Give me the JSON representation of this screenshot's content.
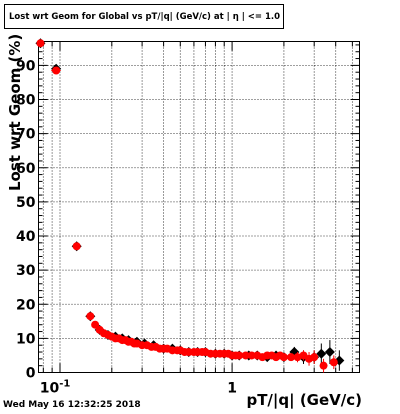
{
  "title": "Lost wrt Geom for Global vs pT/|q| (GeV/c) at |  η | <= 1.0",
  "footer": {
    "timestamp": "Wed May 16 12:32:25 2018"
  },
  "chart_data": {
    "type": "scatter",
    "title": "Lost wrt Geom for Global vs pT/|q| (GeV/c) at |  η | <= 1.0",
    "xlabel": "pT/|q| (GeV/c)",
    "ylabel": "Lost wrt Geom (%)",
    "xscale": "log",
    "xlim": [
      0.075,
      5.5
    ],
    "ylim": [
      0,
      97
    ],
    "grid": true,
    "x_ticks": [
      {
        "value": 0.1,
        "label": "10^-1"
      },
      {
        "value": 1,
        "label": "1"
      }
    ],
    "y_ticks": [
      0,
      10,
      20,
      30,
      40,
      50,
      60,
      70,
      80,
      90
    ],
    "colors": {
      "series_black": "#000000",
      "series_red": "#ff0000"
    },
    "series": [
      {
        "marker": "diamond",
        "color": "#000000",
        "x": [
          0.077,
          0.095,
          0.125,
          0.15,
          0.17,
          0.19,
          0.21,
          0.23,
          0.25,
          0.28,
          0.31,
          0.35,
          0.4,
          0.45,
          0.5,
          0.56,
          0.63,
          0.7,
          0.8,
          0.9,
          1.0,
          1.1,
          1.25,
          1.4,
          1.6,
          1.8,
          2.0,
          2.3,
          2.6,
          3.0,
          3.3,
          3.7,
          4.2
        ],
        "y": [
          96.5,
          89,
          37,
          16.5,
          12.5,
          11,
          10.5,
          10,
          9.5,
          9,
          8.5,
          8,
          7,
          7,
          6.5,
          6,
          6,
          6,
          5.5,
          5.5,
          5,
          5,
          5,
          5,
          4.5,
          5,
          4.5,
          6,
          4.5,
          4.5,
          5.5,
          6,
          3.5
        ],
        "xerr": [
          0,
          0.006,
          0.005,
          0,
          0,
          0,
          0,
          0,
          0,
          0,
          0,
          0,
          0,
          0,
          0,
          0,
          0,
          0,
          0,
          0,
          0,
          0,
          0,
          0,
          0,
          0,
          0,
          0,
          0,
          0,
          0,
          0,
          0
        ],
        "yerr": [
          0,
          0,
          0,
          0,
          0,
          0,
          0,
          0,
          0,
          0,
          0,
          0,
          0,
          0,
          0,
          0,
          0,
          0,
          0,
          0,
          0,
          0,
          0,
          0,
          0,
          0,
          0,
          1.5,
          2,
          2,
          3,
          3.5,
          3
        ]
      },
      {
        "marker": "circle",
        "color": "#ff0000",
        "x": [
          0.077,
          0.095,
          0.125,
          0.15,
          0.16,
          0.17,
          0.18,
          0.19,
          0.2,
          0.21,
          0.22,
          0.23,
          0.24,
          0.25,
          0.26,
          0.27,
          0.28,
          0.3,
          0.32,
          0.34,
          0.36,
          0.38,
          0.4,
          0.42,
          0.45,
          0.48,
          0.5,
          0.53,
          0.56,
          0.6,
          0.63,
          0.67,
          0.7,
          0.75,
          0.8,
          0.85,
          0.9,
          0.95,
          1.0,
          1.05,
          1.1,
          1.2,
          1.3,
          1.4,
          1.5,
          1.6,
          1.7,
          1.8,
          1.9,
          2.0,
          2.2,
          2.4,
          2.6,
          2.8,
          3.0,
          3.4,
          3.9
        ],
        "y": [
          96.5,
          88.5,
          37,
          16.5,
          14,
          12.5,
          11.5,
          11,
          10.5,
          10,
          10,
          9.5,
          9.5,
          9,
          9,
          8.5,
          8.5,
          8,
          8,
          7.5,
          7.5,
          7,
          7,
          7,
          6.5,
          6.5,
          6.5,
          6,
          6,
          6,
          6,
          6,
          6,
          5.5,
          5.5,
          5.5,
          5.5,
          5.5,
          5,
          5,
          5,
          5,
          5,
          5,
          4.5,
          5,
          5,
          4.5,
          5,
          4.5,
          4.5,
          4.5,
          5,
          4,
          4.5,
          2,
          3
        ],
        "xerr": [
          0,
          0.006,
          0.005,
          0,
          0,
          0,
          0,
          0,
          0,
          0,
          0,
          0,
          0,
          0,
          0,
          0,
          0,
          0,
          0,
          0,
          0,
          0,
          0,
          0,
          0,
          0,
          0,
          0,
          0,
          0,
          0,
          0,
          0,
          0,
          0,
          0,
          0,
          0,
          0,
          0,
          0,
          0,
          0,
          0,
          0,
          0,
          0,
          0,
          0,
          0,
          0,
          0,
          0,
          0,
          0,
          0,
          0
        ],
        "yerr": [
          0,
          0,
          0,
          0,
          0,
          0,
          0,
          0,
          0,
          0,
          0,
          0,
          0,
          0,
          0,
          0,
          0,
          0,
          0,
          0,
          0,
          0,
          0,
          0,
          0,
          0,
          0,
          0,
          0,
          0,
          0,
          0,
          0,
          0,
          0,
          0,
          0,
          0,
          0,
          0,
          0,
          0,
          0,
          0,
          0,
          0,
          0,
          0,
          0,
          0,
          0,
          1.5,
          1.5,
          2,
          2,
          2,
          2
        ]
      }
    ]
  }
}
